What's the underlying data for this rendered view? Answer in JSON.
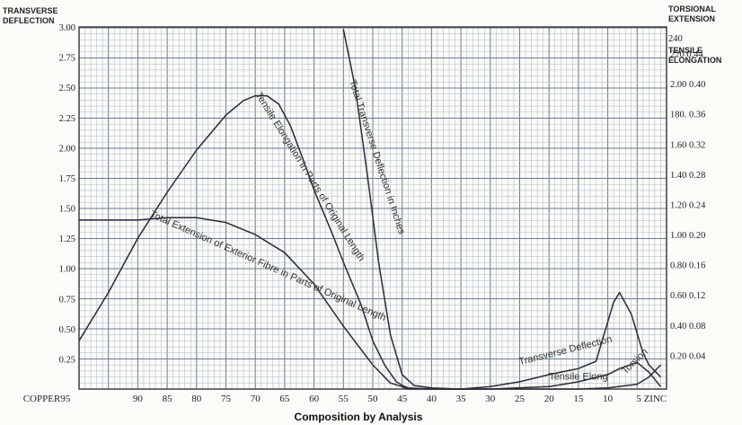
{
  "chart_data": {
    "type": "line",
    "caption": "Composition by Analysis",
    "left_axis_label": [
      "TRANSVERSE",
      "DEFLECTION"
    ],
    "right_axis_label": [
      "TORSIONAL",
      "EXTENSION",
      "240",
      "TENSILE",
      "ELONGATION"
    ],
    "x_tick_labels": [
      "COPPER95",
      "90",
      "85",
      "80",
      "75",
      "70",
      "65",
      "60",
      "55",
      "50",
      "45",
      "40",
      "35",
      "30",
      "25",
      "20",
      "15",
      "10",
      "5 ZINC"
    ],
    "x_range": [
      100,
      0
    ],
    "y_left_ticks": [
      "0.25",
      "0.50",
      "0.75",
      "1.00",
      "1.25",
      "1.50",
      "1.75",
      "2.00",
      "2.25",
      "2.50",
      "2.75",
      "3.00"
    ],
    "y_range": [
      0,
      3.0
    ],
    "y_right_ticks": [
      "0.20 0.04",
      "0.40 0.08",
      "0.60 0.12",
      "0.80 0.16",
      "1.00 0.20",
      "1.20 0.24",
      "1.40 0.28",
      "1.60 0.32",
      "180. 0.36",
      "2.00 0.40",
      "220 0.44"
    ],
    "grid": true,
    "series": [
      {
        "name": "Tensile Elongation in Parts of Original Length",
        "x": [
          100,
          95,
          90,
          85,
          80,
          75,
          72,
          70,
          68,
          66,
          64,
          62,
          60,
          57,
          55,
          52,
          50,
          48,
          46,
          45,
          44,
          40,
          30,
          20,
          15,
          10,
          8,
          5,
          3,
          1
        ],
        "y": [
          0.4,
          0.8,
          1.25,
          1.63,
          1.98,
          2.27,
          2.39,
          2.43,
          2.43,
          2.36,
          2.18,
          1.92,
          1.65,
          1.3,
          1.05,
          0.7,
          0.4,
          0.2,
          0.06,
          0.03,
          0.01,
          0.0,
          0.0,
          0.02,
          0.06,
          0.12,
          0.17,
          0.22,
          0.14,
          0.02
        ]
      },
      {
        "name": "Total Extension of Exterior Fibre in Parts of Original Length",
        "x": [
          100,
          95,
          90,
          85,
          80,
          75,
          70,
          65,
          60,
          55,
          50,
          47,
          45,
          44,
          40,
          30,
          20,
          15,
          10,
          5,
          3,
          1
        ],
        "y": [
          1.4,
          1.4,
          1.4,
          1.42,
          1.42,
          1.38,
          1.28,
          1.13,
          0.87,
          0.52,
          0.2,
          0.05,
          0.02,
          0.0,
          0.0,
          0.0,
          0.0,
          0.0,
          0.01,
          0.04,
          0.1,
          0.2
        ]
      },
      {
        "name": "Total Transverse Deflection in Inches",
        "x": [
          55,
          53,
          51,
          49,
          47,
          45,
          43,
          40,
          35,
          30,
          25,
          20,
          15,
          12,
          9,
          8,
          6,
          4,
          3,
          1
        ],
        "y": [
          2.98,
          2.5,
          1.8,
          1.05,
          0.45,
          0.12,
          0.03,
          0.01,
          0.0,
          0.02,
          0.06,
          0.12,
          0.17,
          0.23,
          0.72,
          0.8,
          0.62,
          0.3,
          0.2,
          0.1
        ]
      }
    ],
    "annotations": [
      "Tensile Elongation in Parts of Original Length",
      "Total Extension of Exterior Fibre in Parts of Original Length",
      "Total Transverse Deflection in Inches",
      "Transverse Deflection",
      "Tensile Elong",
      "Torsion"
    ]
  }
}
